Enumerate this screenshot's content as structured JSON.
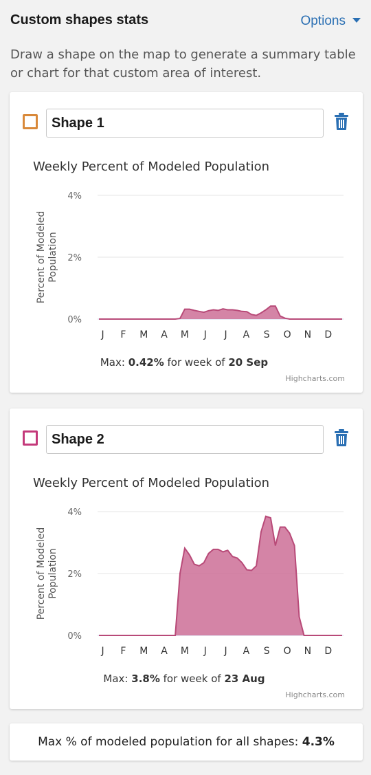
{
  "panel": {
    "title": "Custom shapes stats",
    "options_label": "Options",
    "description": "Draw a shape on the map to generate a summary table or chart for that custom area of interest."
  },
  "colors": {
    "shape1_outline": "#d9893a",
    "shape2_outline": "#c4397a",
    "area_fill": "#cd6f96",
    "area_line": "#b84a78",
    "accent_link": "#2a6fb3"
  },
  "shapes": [
    {
      "name": "Shape 1",
      "swatch_color": "#d9893a",
      "max_prefix": "Max: ",
      "max_value": "0.42%",
      "max_middle": " for week of ",
      "max_date": "20 Sep",
      "credit": "Highcharts.com",
      "delete_icon": "trash-icon"
    },
    {
      "name": "Shape 2",
      "swatch_color": "#c4397a",
      "max_prefix": "Max: ",
      "max_value": "3.8%",
      "max_middle": " for week of ",
      "max_date": "23 Aug",
      "credit": "Highcharts.com",
      "delete_icon": "trash-icon"
    }
  ],
  "chart_data": [
    {
      "type": "area",
      "title": "Weekly Percent of Modeled Population",
      "ylabel": "Percent of Modeled Population",
      "xlabel": "",
      "ylim": [
        0,
        4
      ],
      "y_ticks": [
        "0%",
        "2%",
        "4%"
      ],
      "y_tick_values": [
        0,
        2,
        4
      ],
      "x_ticks": [
        "J",
        "F",
        "M",
        "A",
        "M",
        "J",
        "J",
        "A",
        "S",
        "O",
        "N",
        "D"
      ],
      "grid": true,
      "series": [
        {
          "values": [
            0,
            0,
            0,
            0,
            0,
            0,
            0,
            0,
            0,
            0,
            0,
            0,
            0,
            0,
            0,
            0,
            0,
            0.02,
            0.32,
            0.32,
            0.28,
            0.25,
            0.22,
            0.27,
            0.3,
            0.28,
            0.33,
            0.3,
            0.3,
            0.28,
            0.25,
            0.24,
            0.15,
            0.12,
            0.2,
            0.3,
            0.42,
            0.42,
            0.1,
            0.03,
            0,
            0,
            0,
            0,
            0,
            0,
            0,
            0,
            0,
            0,
            0,
            0
          ]
        }
      ]
    },
    {
      "type": "area",
      "title": "Weekly Percent of Modeled Population",
      "ylabel": "Percent of Modeled Population",
      "xlabel": "",
      "ylim": [
        0,
        4
      ],
      "y_ticks": [
        "0%",
        "2%",
        "4%"
      ],
      "y_tick_values": [
        0,
        2,
        4
      ],
      "x_ticks": [
        "J",
        "F",
        "M",
        "A",
        "M",
        "J",
        "J",
        "A",
        "S",
        "O",
        "N",
        "D"
      ],
      "grid": true,
      "series": [
        {
          "values": [
            0,
            0,
            0,
            0,
            0,
            0,
            0,
            0,
            0,
            0,
            0,
            0,
            0,
            0,
            0,
            0,
            0,
            2.0,
            2.82,
            2.6,
            2.3,
            2.25,
            2.35,
            2.65,
            2.78,
            2.78,
            2.7,
            2.75,
            2.55,
            2.5,
            2.35,
            2.12,
            2.1,
            2.25,
            3.35,
            3.85,
            3.8,
            2.9,
            3.5,
            3.5,
            3.3,
            2.9,
            0.6,
            0,
            0,
            0,
            0,
            0,
            0,
            0,
            0,
            0
          ]
        }
      ]
    }
  ],
  "summary": {
    "label": "Max % of modeled population for all shapes: ",
    "value": "4.3%"
  }
}
